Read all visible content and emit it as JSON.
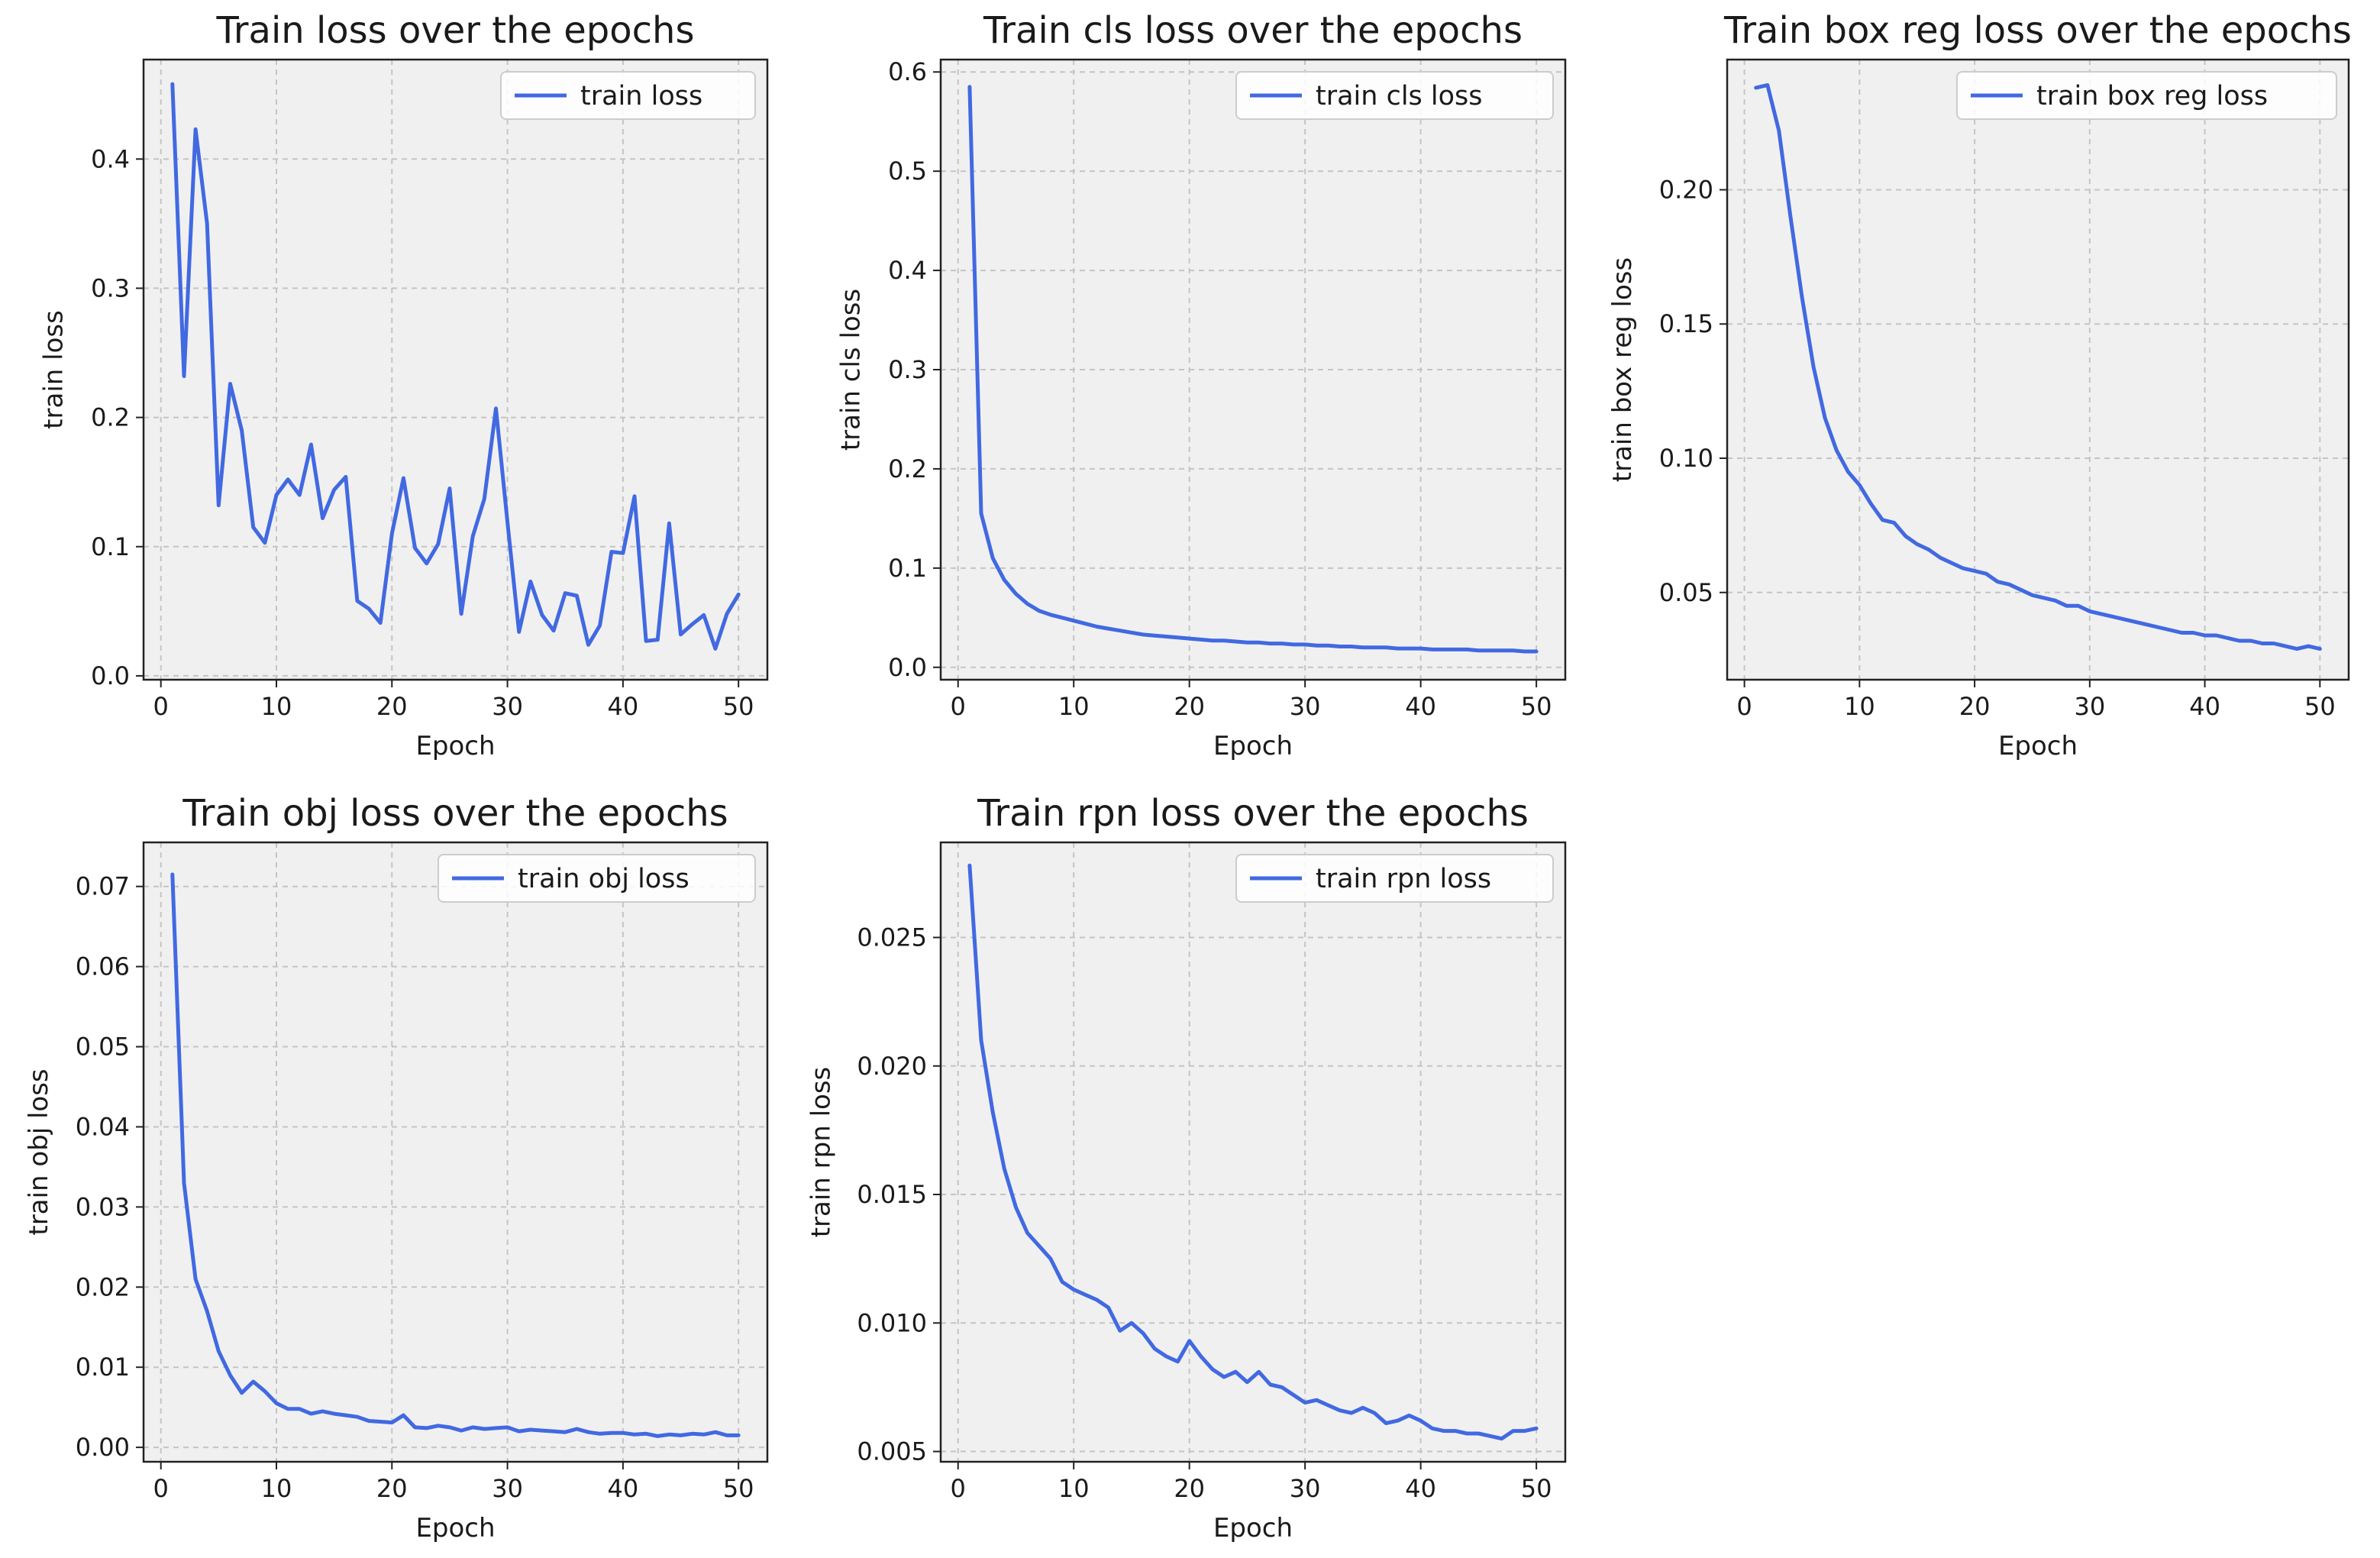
{
  "colors": {
    "line": "#4169e1",
    "plot_bg": "#f0f0f0",
    "grid": "#c4c4c4",
    "axis": "#222222"
  },
  "chart_data": [
    {
      "type": "line",
      "title": "Train loss over the epochs",
      "xlabel": "Epoch",
      "ylabel": "train loss",
      "legend": "train loss",
      "legend_position": "upper-right",
      "grid": true,
      "xlim": [
        -1.5,
        52.5
      ],
      "ylim": [
        -0.003,
        0.477
      ],
      "xticks": [
        0,
        10,
        20,
        30,
        40,
        50
      ],
      "xtick_labels": [
        "0",
        "10",
        "20",
        "30",
        "40",
        "50"
      ],
      "yticks": [
        0,
        0.1,
        0.2,
        0.3,
        0.4
      ],
      "ytick_labels": [
        "0.0",
        "0.1",
        "0.2",
        "0.3",
        "0.4"
      ],
      "x": [
        1,
        2,
        3,
        4,
        5,
        6,
        7,
        8,
        9,
        10,
        11,
        12,
        13,
        14,
        15,
        16,
        17,
        18,
        19,
        20,
        21,
        22,
        23,
        24,
        25,
        26,
        27,
        28,
        29,
        30,
        31,
        32,
        33,
        34,
        35,
        36,
        37,
        38,
        39,
        40,
        41,
        42,
        43,
        44,
        45,
        46,
        47,
        48,
        49,
        50
      ],
      "y": [
        0.458,
        0.232,
        0.423,
        0.35,
        0.132,
        0.226,
        0.19,
        0.115,
        0.103,
        0.14,
        0.152,
        0.14,
        0.179,
        0.122,
        0.144,
        0.154,
        0.058,
        0.052,
        0.041,
        0.11,
        0.153,
        0.099,
        0.087,
        0.102,
        0.145,
        0.048,
        0.108,
        0.137,
        0.207,
        0.119,
        0.034,
        0.073,
        0.047,
        0.035,
        0.064,
        0.062,
        0.024,
        0.039,
        0.096,
        0.095,
        0.139,
        0.027,
        0.028,
        0.118,
        0.032,
        0.04,
        0.047,
        0.021,
        0.048,
        0.063
      ]
    },
    {
      "type": "line",
      "title": "Train cls loss over the epochs",
      "xlabel": "Epoch",
      "ylabel": "train cls loss",
      "legend": "train cls loss",
      "legend_position": "upper-right",
      "grid": true,
      "xlim": [
        -1.5,
        52.5
      ],
      "ylim": [
        -0.0125,
        0.6125
      ],
      "xticks": [
        0,
        10,
        20,
        30,
        40,
        50
      ],
      "xtick_labels": [
        "0",
        "10",
        "20",
        "30",
        "40",
        "50"
      ],
      "yticks": [
        0,
        0.1,
        0.2,
        0.3,
        0.4,
        0.5,
        0.6
      ],
      "ytick_labels": [
        "0.0",
        "0.1",
        "0.2",
        "0.3",
        "0.4",
        "0.5",
        "0.6"
      ],
      "x": [
        1,
        2,
        3,
        4,
        5,
        6,
        7,
        8,
        9,
        10,
        11,
        12,
        13,
        14,
        15,
        16,
        17,
        18,
        19,
        20,
        21,
        22,
        23,
        24,
        25,
        26,
        27,
        28,
        29,
        30,
        31,
        32,
        33,
        34,
        35,
        36,
        37,
        38,
        39,
        40,
        41,
        42,
        43,
        44,
        45,
        46,
        47,
        48,
        49,
        50
      ],
      "y": [
        0.585,
        0.155,
        0.11,
        0.088,
        0.074,
        0.064,
        0.057,
        0.053,
        0.05,
        0.047,
        0.044,
        0.041,
        0.039,
        0.037,
        0.035,
        0.033,
        0.032,
        0.031,
        0.03,
        0.029,
        0.028,
        0.027,
        0.027,
        0.026,
        0.025,
        0.025,
        0.024,
        0.024,
        0.023,
        0.023,
        0.022,
        0.022,
        0.021,
        0.021,
        0.02,
        0.02,
        0.02,
        0.019,
        0.019,
        0.019,
        0.018,
        0.018,
        0.018,
        0.018,
        0.017,
        0.017,
        0.017,
        0.017,
        0.016,
        0.016
      ]
    },
    {
      "type": "line",
      "title": "Train box reg loss over the epochs",
      "xlabel": "Epoch",
      "ylabel": "train box reg loss",
      "legend": "train box reg loss",
      "legend_position": "upper-right",
      "grid": true,
      "xlim": [
        -1.5,
        52.5
      ],
      "ylim": [
        0.0175,
        0.2485
      ],
      "xticks": [
        0,
        10,
        20,
        30,
        40,
        50
      ],
      "xtick_labels": [
        "0",
        "10",
        "20",
        "30",
        "40",
        "50"
      ],
      "yticks": [
        0.05,
        0.1,
        0.15,
        0.2
      ],
      "ytick_labels": [
        "0.05",
        "0.10",
        "0.15",
        "0.20"
      ],
      "x": [
        1,
        2,
        3,
        4,
        5,
        6,
        7,
        8,
        9,
        10,
        11,
        12,
        13,
        14,
        15,
        16,
        17,
        18,
        19,
        20,
        21,
        22,
        23,
        24,
        25,
        26,
        27,
        28,
        29,
        30,
        31,
        32,
        33,
        34,
        35,
        36,
        37,
        38,
        39,
        40,
        41,
        42,
        43,
        44,
        45,
        46,
        47,
        48,
        49,
        50
      ],
      "y": [
        0.238,
        0.239,
        0.222,
        0.19,
        0.16,
        0.134,
        0.115,
        0.103,
        0.095,
        0.09,
        0.083,
        0.077,
        0.076,
        0.071,
        0.068,
        0.066,
        0.063,
        0.061,
        0.059,
        0.058,
        0.057,
        0.054,
        0.053,
        0.051,
        0.049,
        0.048,
        0.047,
        0.045,
        0.045,
        0.043,
        0.042,
        0.041,
        0.04,
        0.039,
        0.038,
        0.037,
        0.036,
        0.035,
        0.035,
        0.034,
        0.034,
        0.033,
        0.032,
        0.032,
        0.031,
        0.031,
        0.03,
        0.029,
        0.03,
        0.029
      ]
    },
    {
      "type": "line",
      "title": "Train obj loss over the epochs",
      "xlabel": "Epoch",
      "ylabel": "train obj loss",
      "legend": "train obj loss",
      "legend_position": "upper-right",
      "grid": true,
      "xlim": [
        -1.5,
        52.5
      ],
      "ylim": [
        -0.0018,
        0.0755
      ],
      "xticks": [
        0,
        10,
        20,
        30,
        40,
        50
      ],
      "xtick_labels": [
        "0",
        "10",
        "20",
        "30",
        "40",
        "50"
      ],
      "yticks": [
        0,
        0.01,
        0.02,
        0.03,
        0.04,
        0.05,
        0.06,
        0.07
      ],
      "ytick_labels": [
        "0.00",
        "0.01",
        "0.02",
        "0.03",
        "0.04",
        "0.05",
        "0.06",
        "0.07"
      ],
      "x": [
        1,
        2,
        3,
        4,
        5,
        6,
        7,
        8,
        9,
        10,
        11,
        12,
        13,
        14,
        15,
        16,
        17,
        18,
        19,
        20,
        21,
        22,
        23,
        24,
        25,
        26,
        27,
        28,
        29,
        30,
        31,
        32,
        33,
        34,
        35,
        36,
        37,
        38,
        39,
        40,
        41,
        42,
        43,
        44,
        45,
        46,
        47,
        48,
        49,
        50
      ],
      "y": [
        0.0715,
        0.033,
        0.021,
        0.017,
        0.012,
        0.009,
        0.0068,
        0.0082,
        0.007,
        0.0055,
        0.0048,
        0.0048,
        0.0042,
        0.0045,
        0.0042,
        0.004,
        0.0038,
        0.0033,
        0.0032,
        0.0031,
        0.004,
        0.0025,
        0.0024,
        0.0027,
        0.0025,
        0.0021,
        0.0025,
        0.0023,
        0.0024,
        0.0025,
        0.002,
        0.0022,
        0.0021,
        0.002,
        0.0019,
        0.0023,
        0.0019,
        0.0017,
        0.0018,
        0.0018,
        0.0016,
        0.0017,
        0.0014,
        0.0016,
        0.0015,
        0.0017,
        0.0016,
        0.0019,
        0.0015,
        0.0015
      ]
    },
    {
      "type": "line",
      "title": "Train rpn loss over the epochs",
      "xlabel": "Epoch",
      "ylabel": "train rpn loss",
      "legend": "train rpn loss",
      "legend_position": "upper-right",
      "grid": true,
      "xlim": [
        -1.5,
        52.5
      ],
      "ylim": [
        0.0046,
        0.0287
      ],
      "xticks": [
        0,
        10,
        20,
        30,
        40,
        50
      ],
      "xtick_labels": [
        "0",
        "10",
        "20",
        "30",
        "40",
        "50"
      ],
      "yticks": [
        0.005,
        0.01,
        0.015,
        0.02,
        0.025
      ],
      "ytick_labels": [
        "0.005",
        "0.010",
        "0.015",
        "0.020",
        "0.025"
      ],
      "x": [
        1,
        2,
        3,
        4,
        5,
        6,
        7,
        8,
        9,
        10,
        11,
        12,
        13,
        14,
        15,
        16,
        17,
        18,
        19,
        20,
        21,
        22,
        23,
        24,
        25,
        26,
        27,
        28,
        29,
        30,
        31,
        32,
        33,
        34,
        35,
        36,
        37,
        38,
        39,
        40,
        41,
        42,
        43,
        44,
        45,
        46,
        47,
        48,
        49,
        50
      ],
      "y": [
        0.0278,
        0.021,
        0.0182,
        0.016,
        0.0145,
        0.0135,
        0.013,
        0.0125,
        0.0116,
        0.0113,
        0.0111,
        0.0109,
        0.0106,
        0.0097,
        0.01,
        0.0096,
        0.009,
        0.0087,
        0.0085,
        0.0093,
        0.0087,
        0.0082,
        0.0079,
        0.0081,
        0.0077,
        0.0081,
        0.0076,
        0.0075,
        0.0072,
        0.0069,
        0.007,
        0.0068,
        0.0066,
        0.0065,
        0.0067,
        0.0065,
        0.0061,
        0.0062,
        0.0064,
        0.0062,
        0.0059,
        0.0058,
        0.0058,
        0.0057,
        0.0057,
        0.0056,
        0.0055,
        0.0058,
        0.0058,
        0.0059
      ]
    }
  ]
}
